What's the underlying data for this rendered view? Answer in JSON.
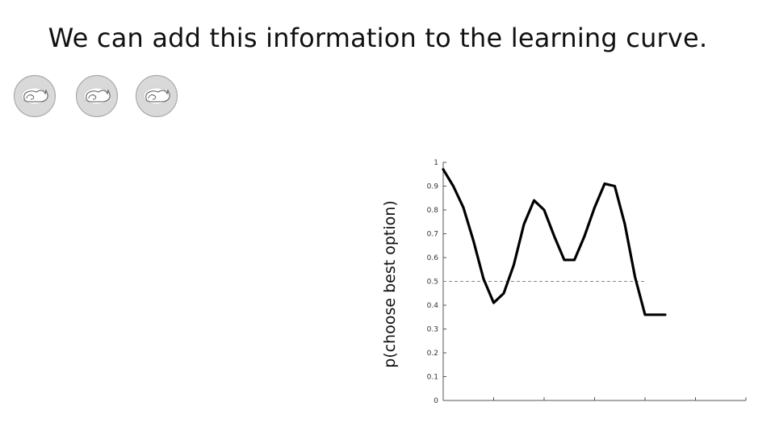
{
  "slide": {
    "title": "We can add this information to the learning curve."
  },
  "tokens": [
    {
      "icon": "sleeping-cat-icon"
    },
    {
      "icon": "sleeping-cat-icon"
    },
    {
      "icon": "sleeping-cat-icon"
    }
  ],
  "chart_data": {
    "type": "line",
    "title": "",
    "xlabel": "",
    "ylabel": "p(choose best option)",
    "ylim": [
      0,
      1
    ],
    "xlim": [
      0,
      6
    ],
    "yticks": [
      0,
      0.1,
      0.2,
      0.3,
      0.4,
      0.5,
      0.6,
      0.7,
      0.8,
      0.9,
      1
    ],
    "ytick_labels": [
      "0",
      "0.1",
      "0.2",
      "0.3",
      "0.4",
      "0.5",
      "0.6",
      "0.7",
      "0.8",
      "0.9",
      "1"
    ],
    "xticks": [
      1,
      2,
      3,
      4,
      5,
      6
    ],
    "xtick_labels": [
      "",
      "",
      "",
      "",
      "",
      ""
    ],
    "series": [
      {
        "color": "#000000",
        "x": [
          0,
          0.2,
          0.4,
          0.6,
          0.8,
          1.0,
          1.2,
          1.4,
          1.6,
          1.8,
          2.0,
          2.2,
          2.4,
          2.6,
          2.8,
          3.0,
          3.2,
          3.4,
          3.6,
          3.8,
          4.0,
          4.2,
          4.4
        ],
        "y": [
          0.97,
          0.9,
          0.81,
          0.67,
          0.51,
          0.41,
          0.45,
          0.57,
          0.74,
          0.84,
          0.8,
          0.69,
          0.59,
          0.59,
          0.69,
          0.81,
          0.91,
          0.9,
          0.74,
          0.52,
          0.36,
          0.36,
          0.36
        ]
      }
    ],
    "reference_line": {
      "y": 0.5,
      "style": "dashed",
      "color": "#888888"
    },
    "grid": false
  }
}
